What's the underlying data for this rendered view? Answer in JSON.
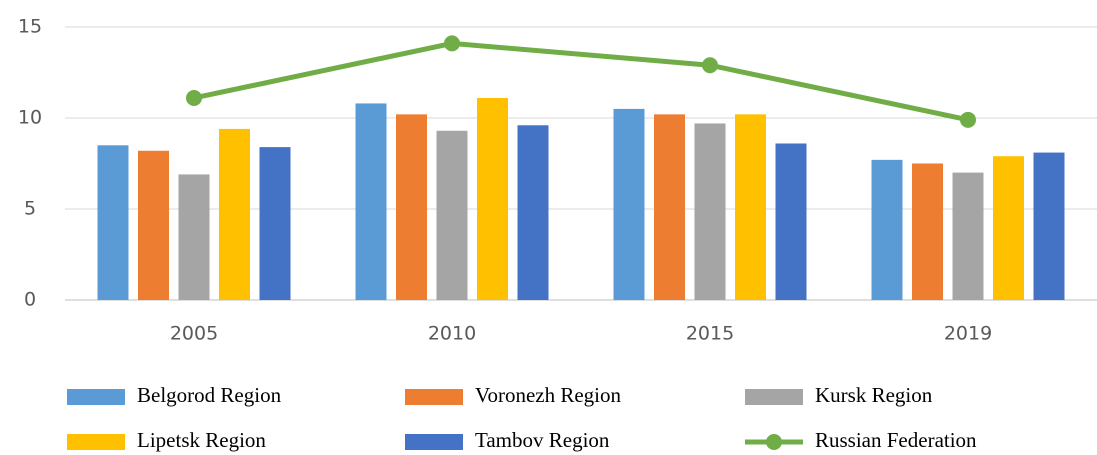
{
  "chart_data": {
    "type": "bar",
    "categories": [
      "2005",
      "2010",
      "2015",
      "2019"
    ],
    "series": [
      {
        "name": "Belgorod Region",
        "color": "#5b9bd5",
        "values": [
          8.5,
          10.8,
          10.5,
          7.7
        ]
      },
      {
        "name": "Voronezh Region",
        "color": "#ed7d31",
        "values": [
          8.2,
          10.2,
          10.2,
          7.5
        ]
      },
      {
        "name": "Kursk Region",
        "color": "#a5a5a5",
        "values": [
          6.9,
          9.3,
          9.7,
          7.0
        ]
      },
      {
        "name": "Lipetsk Region",
        "color": "#ffc000",
        "values": [
          9.4,
          11.1,
          10.2,
          7.9
        ]
      },
      {
        "name": "Tambov Region",
        "color": "#4472c4",
        "values": [
          8.4,
          9.6,
          8.6,
          8.1
        ]
      },
      {
        "name": "Russian Federation",
        "color": "#70ad47",
        "type": "line",
        "values": [
          11.1,
          14.1,
          12.9,
          9.9
        ]
      }
    ],
    "ylim": [
      0,
      15
    ],
    "yticks": [
      0,
      5,
      10,
      15
    ],
    "grid": true,
    "legend": "bottom"
  }
}
